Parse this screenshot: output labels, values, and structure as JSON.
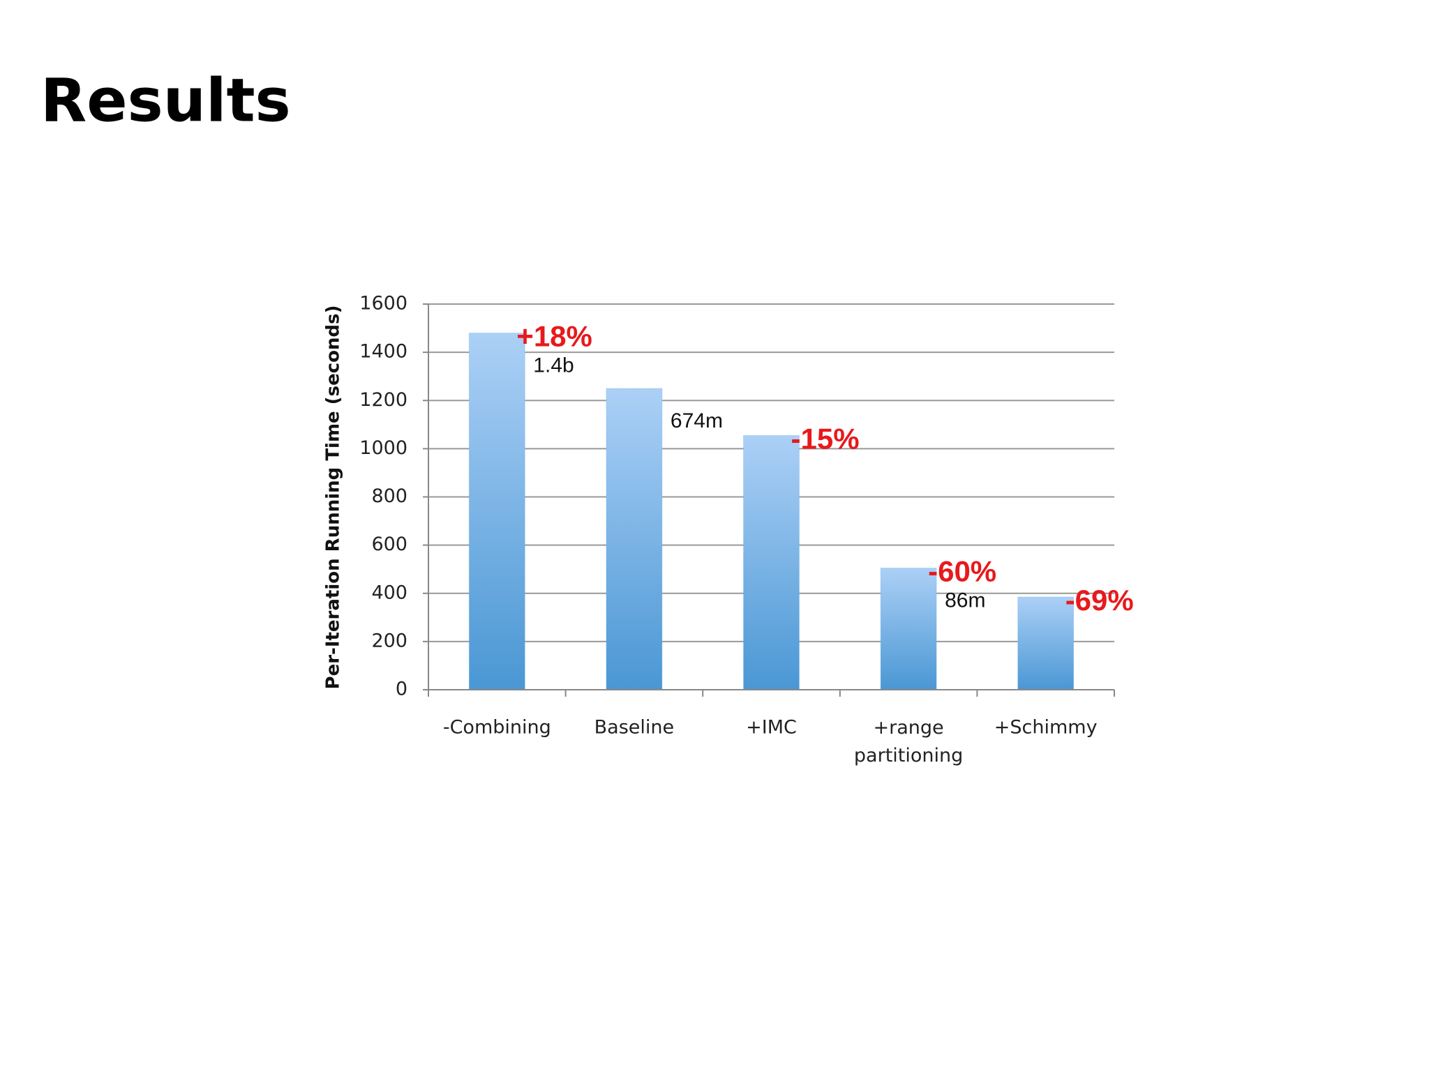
{
  "title": "Results",
  "chart_data": {
    "type": "bar",
    "ylabel": "Per-Iteration Running Time (seconds)",
    "categories": [
      "-Combining",
      "Baseline",
      "+IMC",
      "+range partitioning",
      "+Schimmy"
    ],
    "values": [
      1480,
      1250,
      1055,
      505,
      385
    ],
    "change_labels": [
      "+18%",
      null,
      "-15%",
      "-60%",
      "-69%"
    ],
    "count_labels": [
      "1.4b",
      "674m",
      null,
      "86m",
      null
    ],
    "color": "#6aaee6",
    "ylim": [
      0,
      1600
    ],
    "yticks": [
      0,
      200,
      400,
      600,
      800,
      1000,
      1200,
      1400,
      1600
    ],
    "grid": true
  }
}
